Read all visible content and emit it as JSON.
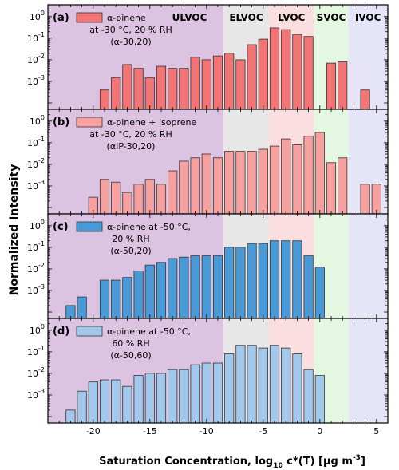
{
  "figure": {
    "ylabel": "Normalized Intensity",
    "xlabel_main": "Saturation Concentration, log",
    "xlabel_sub": "10",
    "xlabel_rest": " c*(T) [µg m",
    "xlabel_sup": "-3",
    "xlabel_end": "]",
    "colors": {
      "ulvoc": "#dcc3e1",
      "elvoc": "#e7e7e7",
      "lvoc": "#fbdfe0",
      "svoc": "#e4f7e1",
      "ivoc": "#e6e5f7",
      "edge": "#333333"
    }
  },
  "chart_data": [
    {
      "type": "bar",
      "panel_label": "(a)",
      "legend_lines": [
        "α-pinene",
        "at -30 °C, 20 % RH",
        "(α-30,20)"
      ],
      "bar_color": "#f27474",
      "x": [
        -19,
        -18,
        -17,
        -16,
        -15,
        -14,
        -13,
        -12,
        -11,
        -10,
        -9,
        -8,
        -7,
        -6,
        -5,
        -4,
        -3,
        -2,
        -1,
        0,
        1,
        2,
        3,
        4
      ],
      "values": [
        0.0004,
        0.0015,
        0.006,
        0.004,
        0.0015,
        0.005,
        0.004,
        0.004,
        0.013,
        0.01,
        0.015,
        0.02,
        0.01,
        0.05,
        0.09,
        0.3,
        0.25,
        0.15,
        0.12,
        null,
        0.007,
        0.008,
        null,
        0.0004
      ],
      "regions": [
        {
          "name": "ULVOC",
          "from": -24,
          "to": -8.5
        },
        {
          "name": "ELVOC",
          "from": -8.5,
          "to": -4.5
        },
        {
          "name": "LVOC",
          "from": -4.5,
          "to": -0.5
        },
        {
          "name": "SVOC",
          "from": -0.5,
          "to": 2.5
        },
        {
          "name": "IVOC",
          "from": 2.5,
          "to": 6
        }
      ],
      "xlim": [
        -24,
        6
      ],
      "ylim_log10": [
        -4,
        0.4
      ],
      "yscale": "log"
    },
    {
      "type": "bar",
      "panel_label": "(b)",
      "legend_lines": [
        "α-pinene + isoprene",
        "at -30 °C, 20 % RH",
        "(αIP-30,20)"
      ],
      "bar_color": "#f6a0a0",
      "x": [
        -20,
        -19,
        -18,
        -17,
        -16,
        -15,
        -14,
        -13,
        -12,
        -11,
        -10,
        -9,
        -8,
        -7,
        -6,
        -5,
        -4,
        -3,
        -2,
        -1,
        0,
        1,
        2,
        3,
        4,
        5
      ],
      "values": [
        0.0003,
        0.002,
        0.0015,
        0.0005,
        0.0012,
        0.002,
        0.0012,
        0.005,
        0.014,
        0.02,
        0.03,
        0.02,
        0.04,
        0.04,
        0.04,
        0.05,
        0.07,
        0.15,
        0.08,
        0.2,
        0.3,
        0.012,
        0.02,
        null,
        0.0012,
        0.0012
      ],
      "xlim": [
        -24,
        6
      ],
      "ylim_log10": [
        -4,
        0.4
      ],
      "yscale": "log"
    },
    {
      "type": "bar",
      "panel_label": "(c)",
      "legend_lines": [
        "α-pinene at -50 °C,",
        "20 % RH",
        "(α-50,20)"
      ],
      "bar_color": "#4a9ad8",
      "x": [
        -22,
        -21,
        -20,
        -19,
        -18,
        -17,
        -16,
        -15,
        -14,
        -13,
        -12,
        -11,
        -10,
        -9,
        -8,
        -7,
        -6,
        -5,
        -4,
        -3,
        -2,
        -1,
        0
      ],
      "values": [
        0.0002,
        0.0005,
        null,
        0.003,
        0.003,
        0.004,
        0.008,
        0.015,
        0.02,
        0.03,
        0.035,
        0.04,
        0.04,
        0.04,
        0.1,
        0.1,
        0.15,
        0.15,
        0.2,
        0.2,
        0.2,
        0.04,
        0.012
      ],
      "xlim": [
        -24,
        6
      ],
      "ylim_log10": [
        -4,
        0.4
      ],
      "yscale": "log"
    },
    {
      "type": "bar",
      "panel_label": "(d)",
      "legend_lines": [
        "α-pinene at -50 °C,",
        "60 % RH",
        "(α-50,60)"
      ],
      "bar_color": "#a2c9ec",
      "x": [
        -22,
        -21,
        -20,
        -19,
        -18,
        -17,
        -16,
        -15,
        -14,
        -13,
        -12,
        -11,
        -10,
        -9,
        -8,
        -7,
        -6,
        -5,
        -4,
        -3,
        -2,
        -1,
        0
      ],
      "values": [
        0.0002,
        0.0015,
        0.004,
        0.005,
        0.005,
        0.0025,
        0.008,
        0.01,
        0.01,
        0.015,
        0.015,
        0.025,
        0.03,
        0.03,
        0.08,
        0.2,
        0.2,
        0.15,
        0.2,
        0.15,
        0.08,
        0.015,
        0.008
      ],
      "xlim": [
        -24,
        6
      ],
      "ylim_log10": [
        -4,
        0.4
      ],
      "yscale": "log"
    }
  ],
  "x_ticks": [
    -20,
    -15,
    -10,
    -5,
    0,
    5
  ],
  "y_ticks": [
    {
      "exp": -3,
      "base": "10",
      "sup": "-3"
    },
    {
      "exp": -2,
      "base": "10",
      "sup": "-2"
    },
    {
      "exp": -1,
      "base": "10",
      "sup": "-1"
    },
    {
      "exp": 0,
      "base": "10",
      "sup": "0"
    }
  ]
}
